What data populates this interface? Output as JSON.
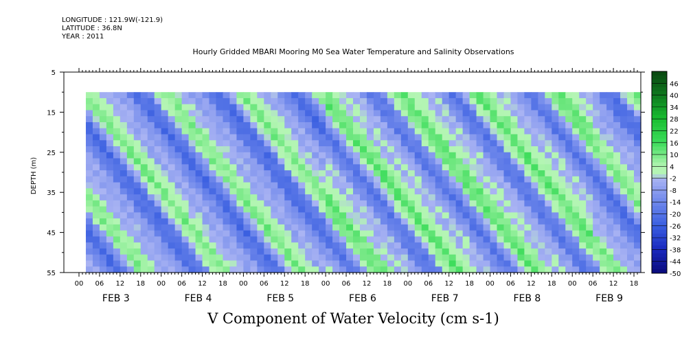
{
  "header": {
    "longitude": "LONGITUDE : 121.9W(-121.9)",
    "latitude": "LATITUDE : 36.8N",
    "year": "YEAR : 2011"
  },
  "chart_data": {
    "type": "heatmap",
    "title": "Hourly Gridded MBARI Mooring M0 Sea Water Temperature and Salinity Observations",
    "xlabel": "V Component of Water Velocity (cm s-1)",
    "ylabel": "DEPTH (m)",
    "y_ticks": [
      "5",
      "15",
      "25",
      "35",
      "45",
      "55"
    ],
    "ylim": [
      5,
      55
    ],
    "y_reversed": true,
    "x_hour_ticks": [
      "00",
      "06",
      "12",
      "18",
      "00",
      "06",
      "12",
      "18",
      "00",
      "06",
      "12",
      "18",
      "00",
      "06",
      "12",
      "18",
      "00",
      "06",
      "12",
      "18",
      "00",
      "06",
      "12",
      "18",
      "00",
      "06",
      "12",
      "18"
    ],
    "x_days": [
      "FEB 3",
      "FEB 4",
      "FEB 5",
      "FEB 6",
      "FEB 7",
      "FEB 8",
      "FEB 9"
    ],
    "colorbar_labels": [
      "46",
      "40",
      "34",
      "28",
      "22",
      "16",
      "10",
      "4",
      "-2",
      "-8",
      "-14",
      "-20",
      "-26",
      "-32",
      "-38",
      "-44",
      "-50"
    ],
    "colorbar_range": [
      -50,
      52
    ],
    "data_depth_range": [
      10,
      55
    ],
    "data_start_hour": 2,
    "colors": {
      "strong_negative": "#0a0a7a",
      "negative": "#3a5fe0",
      "weak_negative": "#a9b2f3",
      "weak_positive": "#b2f5b2",
      "positive": "#1fdc3a",
      "strong_positive": "#0a4a10"
    }
  }
}
